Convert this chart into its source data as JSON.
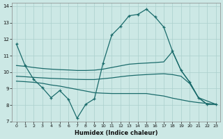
{
  "xlabel": "Humidex (Indice chaleur)",
  "bg_color": "#cce8e5",
  "grid_color": "#aacfcc",
  "line_color": "#1a6b6b",
  "xlim": [
    -0.5,
    23.5
  ],
  "ylim": [
    7,
    14.2
  ],
  "xticks": [
    0,
    1,
    2,
    3,
    4,
    5,
    6,
    7,
    8,
    9,
    10,
    11,
    12,
    13,
    14,
    15,
    16,
    17,
    18,
    19,
    20,
    21,
    22,
    23
  ],
  "yticks": [
    7,
    8,
    9,
    10,
    11,
    12,
    13,
    14
  ],
  "line1_x": [
    0,
    1,
    2,
    3,
    4,
    5,
    6,
    7,
    8,
    9,
    10,
    11,
    12,
    13,
    14,
    15,
    16,
    17,
    18,
    19,
    20,
    21,
    22,
    23
  ],
  "line1_y": [
    11.7,
    10.4,
    9.55,
    9.05,
    8.45,
    8.88,
    8.35,
    7.2,
    8.05,
    8.38,
    10.55,
    12.25,
    12.78,
    13.42,
    13.5,
    13.82,
    13.35,
    12.73,
    11.28,
    10.1,
    9.38,
    8.45,
    8.05,
    8.05
  ],
  "line2_x": [
    0,
    1,
    2,
    3,
    4,
    5,
    6,
    7,
    8,
    9,
    10,
    11,
    12,
    13,
    14,
    15,
    16,
    17,
    18,
    19,
    20,
    21,
    22,
    23
  ],
  "line2_y": [
    10.4,
    10.35,
    10.28,
    10.22,
    10.18,
    10.15,
    10.13,
    10.1,
    10.1,
    10.12,
    10.18,
    10.28,
    10.38,
    10.48,
    10.52,
    10.55,
    10.58,
    10.62,
    11.25,
    10.1,
    9.38,
    8.45,
    8.05,
    8.05
  ],
  "line3_x": [
    0,
    1,
    2,
    3,
    4,
    5,
    6,
    7,
    8,
    9,
    10,
    11,
    12,
    13,
    14,
    15,
    16,
    17,
    18,
    19,
    20,
    21,
    22,
    23
  ],
  "line3_y": [
    9.75,
    9.72,
    9.68,
    9.65,
    9.62,
    9.6,
    9.58,
    9.56,
    9.55,
    9.55,
    9.6,
    9.65,
    9.72,
    9.78,
    9.82,
    9.85,
    9.88,
    9.9,
    9.85,
    9.75,
    9.3,
    8.45,
    8.25,
    8.05
  ],
  "line4_x": [
    0,
    1,
    2,
    3,
    4,
    5,
    6,
    7,
    8,
    9,
    10,
    11,
    12,
    13,
    14,
    15,
    16,
    17,
    18,
    19,
    20,
    21,
    22,
    23
  ],
  "line4_y": [
    9.45,
    9.42,
    9.38,
    9.32,
    9.22,
    9.15,
    9.05,
    8.95,
    8.85,
    8.75,
    8.72,
    8.7,
    8.7,
    8.7,
    8.7,
    8.7,
    8.62,
    8.55,
    8.42,
    8.32,
    8.22,
    8.15,
    8.1,
    8.05
  ]
}
